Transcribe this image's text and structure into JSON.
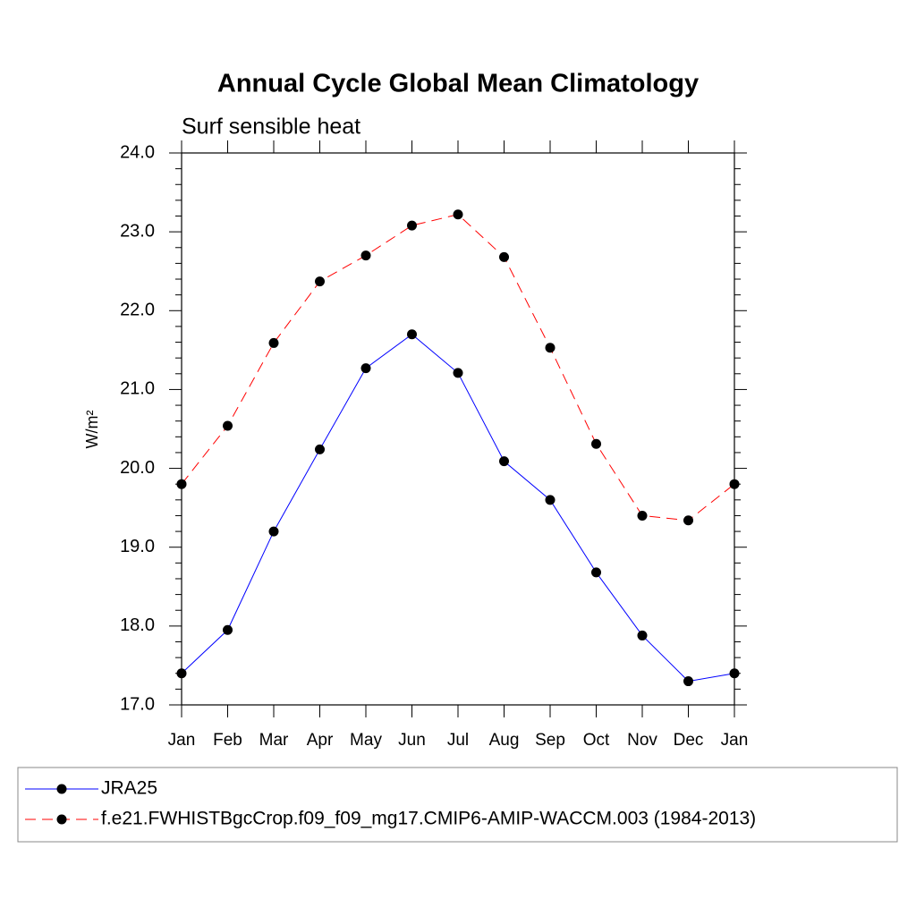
{
  "chart_data": {
    "type": "line",
    "title": "Annual Cycle Global Mean Climatology",
    "subtitle": "Surf sensible heat",
    "ylabel": "W/m²",
    "categories": [
      "Jan",
      "Feb",
      "Mar",
      "Apr",
      "May",
      "Jun",
      "Jul",
      "Aug",
      "Sep",
      "Oct",
      "Nov",
      "Dec",
      "Jan"
    ],
    "series": [
      {
        "name": "JRA25",
        "color": "#0000ff",
        "dashed": false,
        "values": [
          17.4,
          17.95,
          19.2,
          20.24,
          21.27,
          21.7,
          21.21,
          20.09,
          19.6,
          18.68,
          17.88,
          17.3,
          17.4
        ]
      },
      {
        "name": "f.e21.FWHISTBgcCrop.f09_f09_mg17.CMIP6-AMIP-WACCM.003 (1984-2013)",
        "color": "#ff0000",
        "dashed": true,
        "values": [
          19.8,
          20.54,
          21.59,
          22.37,
          22.7,
          23.08,
          23.22,
          22.68,
          21.53,
          20.31,
          19.4,
          19.34,
          19.8
        ]
      }
    ],
    "ylim": [
      17,
      24
    ],
    "yticks": [
      {
        "value": 17,
        "label": "17.0"
      },
      {
        "value": 18,
        "label": "18.0"
      },
      {
        "value": 19,
        "label": "19.0"
      },
      {
        "value": 20,
        "label": "20.0"
      },
      {
        "value": 21,
        "label": "21.0"
      },
      {
        "value": 22,
        "label": "22.0"
      },
      {
        "value": 23,
        "label": "23.0"
      },
      {
        "value": 24,
        "label": "24.0"
      }
    ],
    "yminorticks": [
      17.2,
      17.4,
      17.6,
      17.8,
      18.2,
      18.4,
      18.6,
      18.8,
      19.2,
      19.4,
      19.6,
      19.8,
      20.2,
      20.4,
      20.6,
      20.8,
      21.2,
      21.4,
      21.6,
      21.8,
      22.2,
      22.4,
      22.6,
      22.8,
      23.2,
      23.4,
      23.6,
      23.8
    ],
    "grid": false
  }
}
